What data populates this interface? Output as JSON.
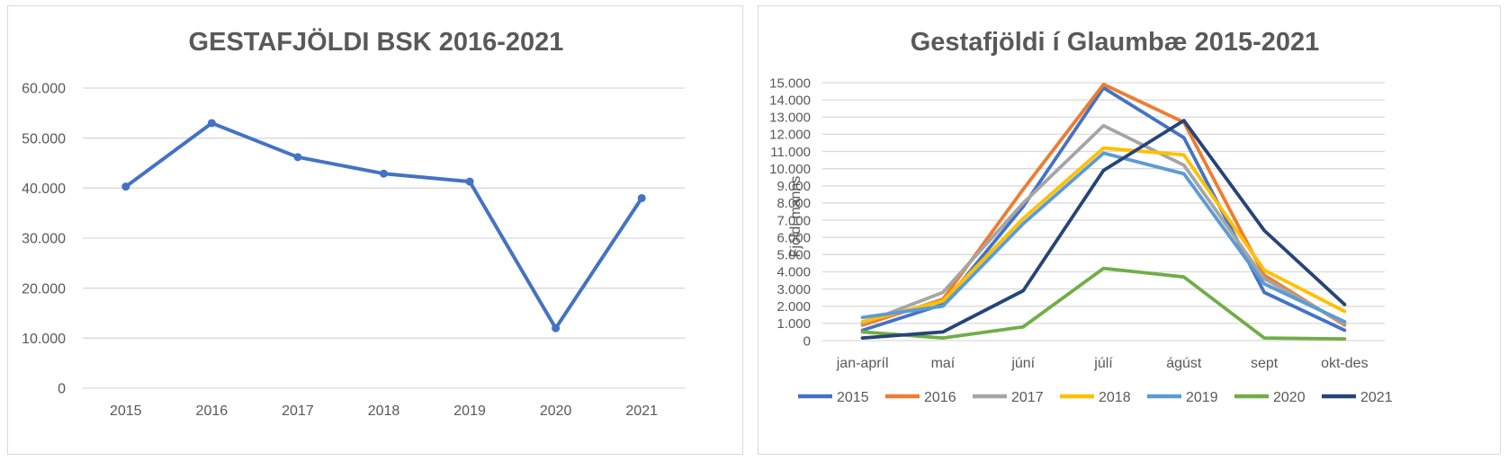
{
  "chart_data": [
    {
      "type": "line",
      "title": "GESTAFJÖLDI BSK 2016-2021",
      "xlabel": "",
      "ylabel": "",
      "categories": [
        "2015",
        "2016",
        "2017",
        "2018",
        "2019",
        "2020",
        "2021"
      ],
      "y_ticks": [
        "0",
        "10.000",
        "20.000",
        "30.000",
        "40.000",
        "50.000",
        "60.000"
      ],
      "ylim": [
        0,
        60000
      ],
      "grid": true,
      "markers": true,
      "series": [
        {
          "values": [
            40300,
            53000,
            46200,
            42900,
            41300,
            12000,
            38000
          ],
          "color": "#4472c4"
        }
      ]
    },
    {
      "type": "line",
      "title": "Gestafjöldi í Glaumbæ 2015-2021",
      "xlabel": "",
      "ylabel": "Fjöldi manns",
      "categories": [
        "jan-apríl",
        "maí",
        "júní",
        "júlí",
        "ágúst",
        "sept",
        "okt-des"
      ],
      "y_ticks": [
        "0",
        "1.000",
        "2.000",
        "3.000",
        "4.000",
        "5.000",
        "6.000",
        "7.000",
        "8.000",
        "9.000",
        "10.000",
        "11.000",
        "12.000",
        "13.000",
        "14.000",
        "15.000"
      ],
      "ylim": [
        0,
        15000
      ],
      "grid": true,
      "legend": "bottom",
      "series": [
        {
          "name": "2015",
          "color": "#4472c4",
          "values": [
            600,
            2100,
            7800,
            14700,
            11800,
            2800,
            600
          ]
        },
        {
          "name": "2016",
          "color": "#ed7d31",
          "values": [
            900,
            2400,
            8800,
            14900,
            12700,
            3800,
            900
          ]
        },
        {
          "name": "2017",
          "color": "#a5a5a5",
          "values": [
            1000,
            2800,
            8000,
            12500,
            10200,
            3600,
            1000
          ]
        },
        {
          "name": "2018",
          "color": "#ffc000",
          "values": [
            1100,
            2300,
            7100,
            11200,
            10800,
            4100,
            1700
          ]
        },
        {
          "name": "2019",
          "color": "#5b9bd5",
          "values": [
            1350,
            2000,
            6800,
            10900,
            9700,
            3300,
            1100
          ]
        },
        {
          "name": "2020",
          "color": "#70ad47",
          "values": [
            500,
            150,
            800,
            4200,
            3700,
            150,
            100
          ]
        },
        {
          "name": "2021",
          "color": "#264478",
          "values": [
            150,
            500,
            2900,
            9900,
            12800,
            6400,
            2100
          ]
        }
      ]
    }
  ]
}
